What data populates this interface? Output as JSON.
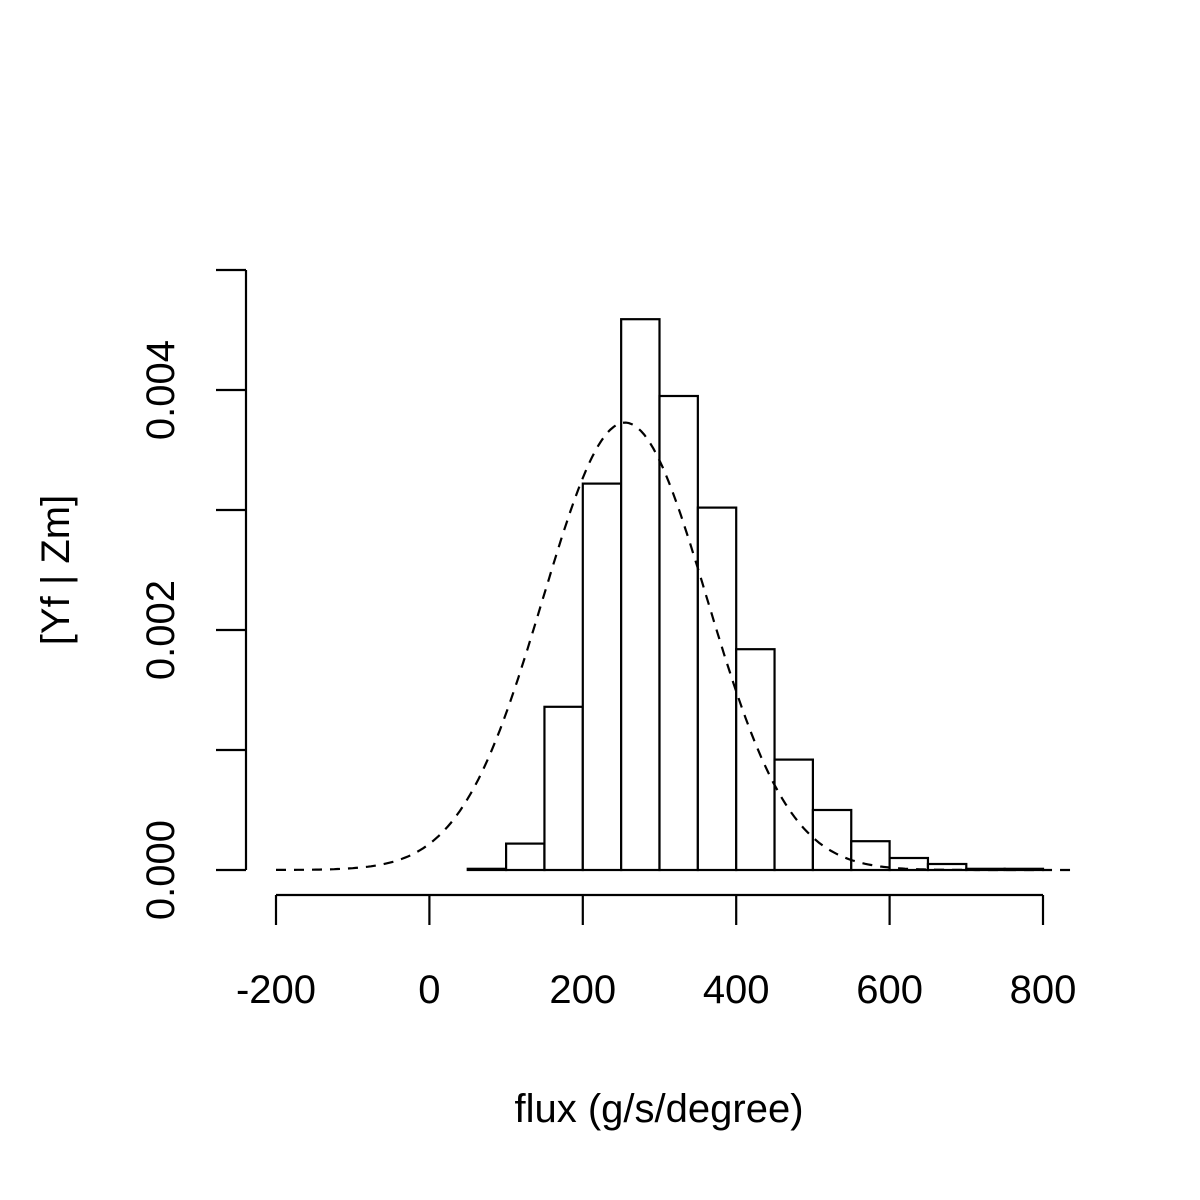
{
  "chart_data": {
    "type": "bar",
    "subtype": "histogram-with-density-curve",
    "title": "",
    "xlabel": "flux (g/s/degree)",
    "ylabel": "[Yf | Zm]",
    "xlim": [
      -200,
      840
    ],
    "ylim": [
      0,
      0.005
    ],
    "grid": false,
    "x_ticks": [
      -200,
      0,
      200,
      400,
      600,
      800
    ],
    "x_tick_labels": [
      "-200",
      "0",
      "200",
      "400",
      "600",
      "800"
    ],
    "y_ticks": [
      0,
      0.001,
      0.002,
      0.003,
      0.004,
      0.005
    ],
    "y_tick_labels": [
      "0.000",
      "",
      "0.002",
      "",
      "0.004",
      ""
    ],
    "histogram": {
      "bins": [
        {
          "x0": 50,
          "x1": 100,
          "density": 1e-05
        },
        {
          "x0": 100,
          "x1": 150,
          "density": 0.00022
        },
        {
          "x0": 150,
          "x1": 200,
          "density": 0.00136
        },
        {
          "x0": 200,
          "x1": 250,
          "density": 0.00322
        },
        {
          "x0": 250,
          "x1": 300,
          "density": 0.00459
        },
        {
          "x0": 300,
          "x1": 350,
          "density": 0.00395
        },
        {
          "x0": 350,
          "x1": 400,
          "density": 0.00302
        },
        {
          "x0": 400,
          "x1": 450,
          "density": 0.00184
        },
        {
          "x0": 450,
          "x1": 500,
          "density": 0.00092
        },
        {
          "x0": 500,
          "x1": 550,
          "density": 0.0005
        },
        {
          "x0": 550,
          "x1": 600,
          "density": 0.00024
        },
        {
          "x0": 600,
          "x1": 650,
          "density": 0.0001
        },
        {
          "x0": 650,
          "x1": 700,
          "density": 5e-05
        },
        {
          "x0": 700,
          "x1": 750,
          "density": 1e-05
        },
        {
          "x0": 750,
          "x1": 800,
          "density": 1e-05
        },
        {
          "x0": 800,
          "x1": 840,
          "density": 0.0
        }
      ]
    },
    "density_curve": {
      "style": "dashed",
      "distribution": "normal",
      "mean": 255,
      "sd": 107,
      "x_range": [
        -200,
        840
      ]
    }
  }
}
